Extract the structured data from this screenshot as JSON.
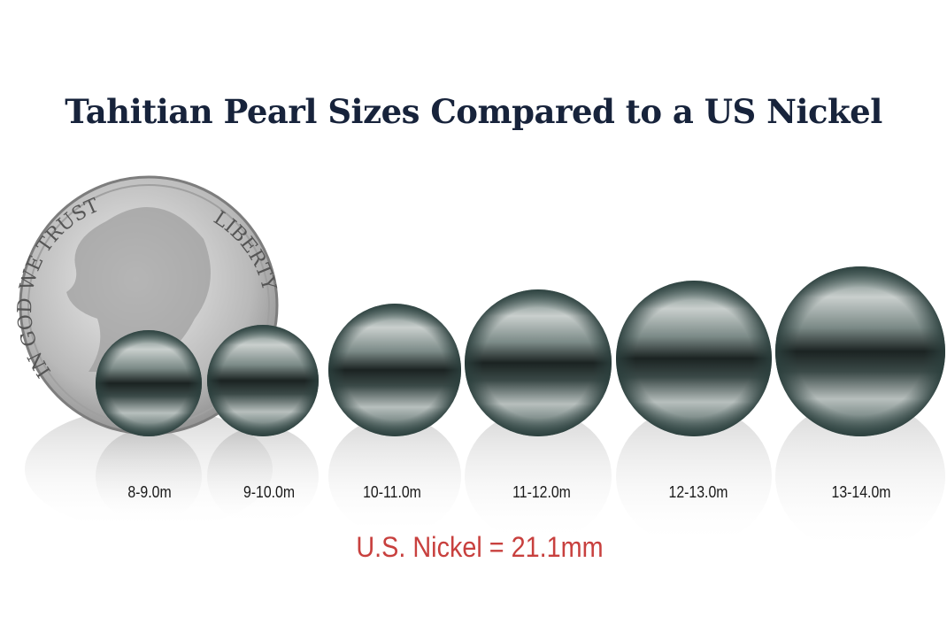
{
  "title": "Tahitian Pearl Sizes Compared to a US Nickel",
  "coin": {
    "lettering_left": "IN GOD WE TRUST",
    "lettering_right": "LIBERTY"
  },
  "pearls": [
    {
      "label": "8-9.0m"
    },
    {
      "label": "9-10.0m"
    },
    {
      "label": "10-11.0m"
    },
    {
      "label": "11-12.0m"
    },
    {
      "label": "12-13.0m"
    },
    {
      "label": "13-14.0m"
    }
  ],
  "nickel_note": "U.S. Nickel = 21.1mm",
  "colors": {
    "title": "#17233b",
    "note": "#c8403e",
    "pearl_body": "#3f5552",
    "pearl_band": "#1b2322"
  }
}
